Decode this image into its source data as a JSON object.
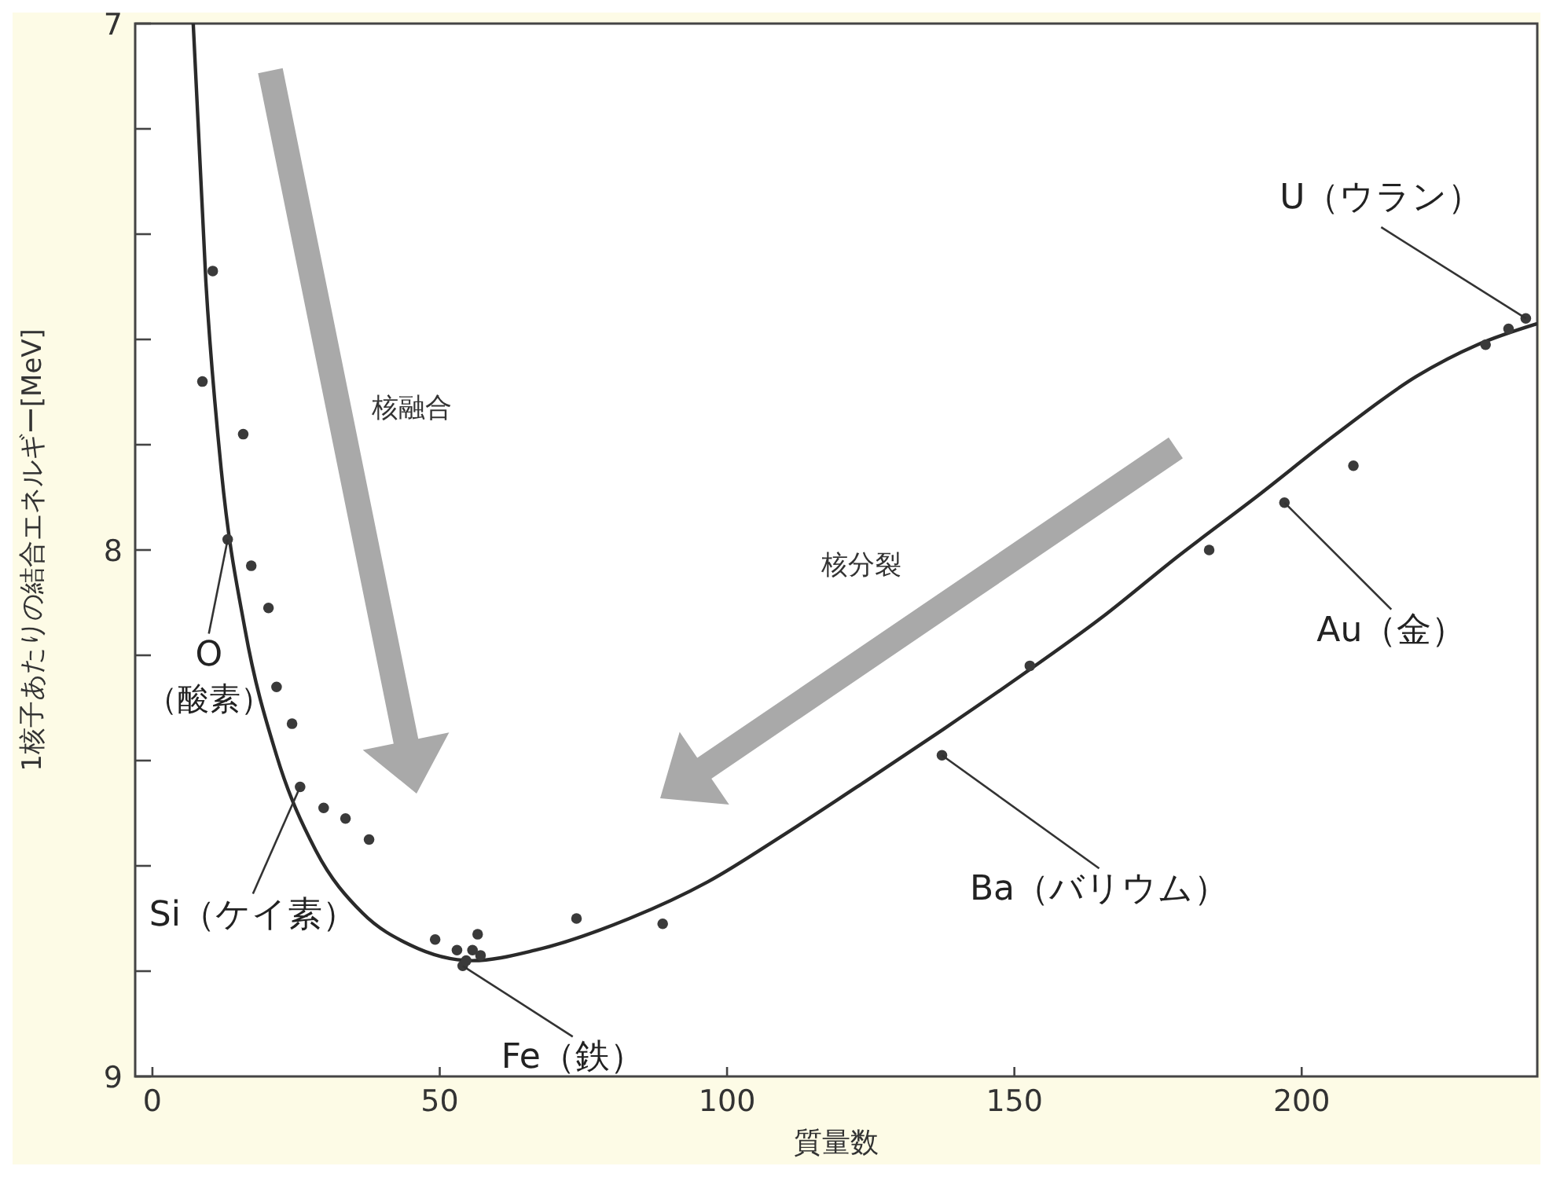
{
  "chart_data": {
    "type": "scatter",
    "xlabel": "質量数",
    "ylabel": "1核子あたりの結合エネルギー[MeV]",
    "xlim": [
      -3,
      241
    ],
    "xticks": [
      0,
      50,
      100,
      150,
      200
    ],
    "ylim": [
      9,
      7
    ],
    "yticks": [
      7,
      {
        "value": 7.2,
        "label": null
      },
      {
        "value": 7.4,
        "label": null
      },
      {
        "value": 7.6,
        "label": null
      },
      {
        "value": 7.8,
        "label": null
      },
      8,
      {
        "value": 8.2,
        "label": null
      },
      {
        "value": 8.4,
        "label": null
      },
      {
        "value": 8.6,
        "label": null
      },
      {
        "value": 8.8,
        "label": null
      },
      9
    ],
    "grid": false,
    "marker": "circle",
    "series": [
      {
        "type": "line",
        "marker": "none",
        "color": "#2a2a2a",
        "x": [
          7.1,
          9.3,
          12,
          16.1,
          21.6,
          28.4,
          36.6,
          44.8,
          55.7,
          66.7,
          83,
          96.7,
          110,
          124,
          137.7,
          151,
          165,
          178.7,
          192,
          206,
          220,
          230.6,
          241
        ],
        "values": [
          7.0,
          7.49,
          7.85,
          8.15,
          8.39,
          8.57,
          8.69,
          8.75,
          8.78,
          8.76,
          8.7,
          8.63,
          8.54,
          8.44,
          8.34,
          8.24,
          8.13,
          8.01,
          7.9,
          7.78,
          7.67,
          7.61,
          7.57
        ]
      },
      {
        "color": "#3a3a3a",
        "x": [
          8.7,
          10.5,
          15.8,
          13.1,
          17.2,
          20.2,
          21.6,
          24.3,
          25.7,
          29.8,
          33.6,
          37.7,
          49.2,
          53,
          54,
          54.6,
          55.7,
          56.6,
          57.1,
          73.8,
          88.8,
          137.4,
          152.7,
          183.9,
          197,
          209,
          232,
          236,
          239
        ],
        "values": [
          7.68,
          7.47,
          7.78,
          7.98,
          8.03,
          8.11,
          8.26,
          8.33,
          8.45,
          8.49,
          8.51,
          8.55,
          8.74,
          8.76,
          8.79,
          8.78,
          8.76,
          8.73,
          8.77,
          8.7,
          8.71,
          8.39,
          8.22,
          8.0,
          7.91,
          7.84,
          7.61,
          7.58,
          7.56
        ]
      }
    ],
    "annotations": [
      {
        "text": "O\n（酸素）",
        "x": 13.1,
        "y": 7.98
      },
      {
        "text": "Si（ケイ素）",
        "x": 25.7,
        "y": 8.45
      },
      {
        "text": "Fe（鉄）",
        "x": 54,
        "y": 8.79
      },
      {
        "text": "Ba（バリウム）",
        "x": 137.4,
        "y": 8.39
      },
      {
        "text": "Au（金）",
        "x": 197,
        "y": 7.91
      },
      {
        "text": "U（ウラン）",
        "x": 239,
        "y": 7.56
      },
      "核融合",
      "核分裂"
    ]
  }
}
